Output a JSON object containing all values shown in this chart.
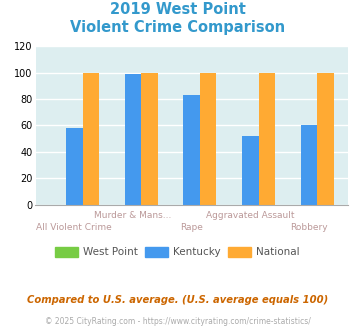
{
  "title_line1": "2019 West Point",
  "title_line2": "Violent Crime Comparison",
  "title_color": "#3399cc",
  "categories": [
    "All Violent Crime",
    "Murder & Mans...",
    "Rape",
    "Aggravated Assault",
    "Robbery"
  ],
  "west_point": [
    0,
    0,
    0,
    0,
    0
  ],
  "kentucky": [
    58,
    99,
    83,
    52,
    60
  ],
  "national": [
    100,
    100,
    100,
    100,
    100
  ],
  "west_point_color": "#77cc44",
  "kentucky_color": "#4499ee",
  "national_color": "#ffaa33",
  "ylim": [
    0,
    120
  ],
  "yticks": [
    0,
    20,
    40,
    60,
    80,
    100,
    120
  ],
  "background_color": "#ddeef0",
  "fig_background": "#ffffff",
  "grid_color": "#ffffff",
  "footnote1": "Compared to U.S. average. (U.S. average equals 100)",
  "footnote2": "© 2025 CityRating.com - https://www.cityrating.com/crime-statistics/",
  "footnote1_color": "#cc6600",
  "footnote2_color": "#aaaaaa",
  "legend_labels": [
    "West Point",
    "Kentucky",
    "National"
  ],
  "label_color_top": "#bb9999",
  "label_color_bot": "#bb9999"
}
